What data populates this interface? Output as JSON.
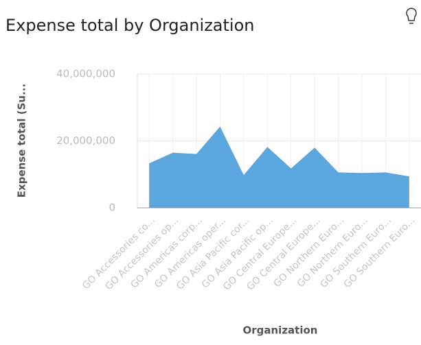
{
  "chart_data": {
    "type": "area",
    "title": "Expense total by Organization",
    "x_label": "Organization",
    "y_label": "Expense total (Su...",
    "categories": [
      "GO Accessories co...",
      "GO Accessories op...",
      "GO Americas corp...",
      "GO Americas oper...",
      "GO Asia Pacific cor...",
      "GO Asia Pacific op...",
      "GO Central Europe...",
      "GO Central Europe...",
      "GO Northern Euro...",
      "GO Northern Euro...",
      "GO Southern Euro...",
      "GO Southern Euro..."
    ],
    "values": [
      13300000,
      16500000,
      16100000,
      24300000,
      9800000,
      18200000,
      11800000,
      18000000,
      10600000,
      10400000,
      10600000,
      9400000
    ],
    "color": "#5ba6dc",
    "ylim": [
      0,
      40000000
    ],
    "yticks": [
      0,
      {
        "value": 20000000,
        "label": "20,000,000"
      },
      {
        "value": 40000000,
        "label": "40,000,000"
      }
    ],
    "grid": true
  }
}
